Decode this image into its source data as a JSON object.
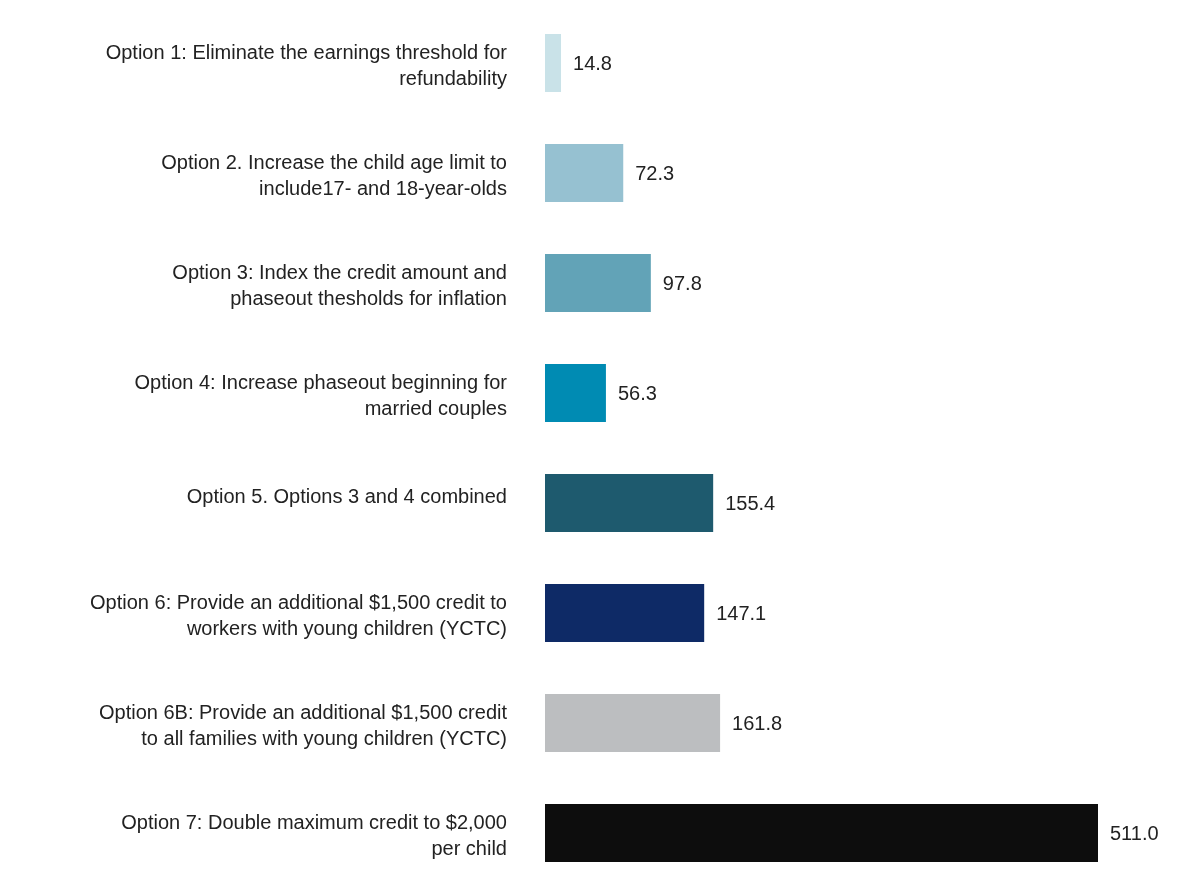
{
  "chart_data": {
    "type": "bar",
    "orientation": "horizontal",
    "categories": [
      "Option 1: Eliminate the earnings threshold for\nrefundability",
      "Option 2. Increase the child age limit to\ninclude17- and 18-year-olds",
      "Option 3: Index the credit amount and\nphaseout thesholds for inflation",
      "Option 4: Increase phaseout beginning for\nmarried couples",
      "Option 5. Options 3 and 4 combined",
      "Option 6: Provide an additional $1,500 credit to\nworkers with young children (YCTC)",
      "Option 6B: Provide an additional $1,500 credit\nto all families with young children (YCTC)",
      "Option 7: Double maximum credit to $2,000\nper child"
    ],
    "values": [
      14.8,
      72.3,
      97.8,
      56.3,
      155.4,
      147.1,
      161.8,
      511.0
    ],
    "value_labels": [
      "14.8",
      "72.3",
      "97.8",
      "56.3",
      "155.4",
      "147.1",
      "161.8",
      "511.0"
    ],
    "colors": [
      "#c9e2e8",
      "#96c1d1",
      "#62a3b7",
      "#008bb3",
      "#1e5a6e",
      "#0e2a66",
      "#bcbec0",
      "#0d0d0d"
    ],
    "grid": false,
    "legend": false
  }
}
